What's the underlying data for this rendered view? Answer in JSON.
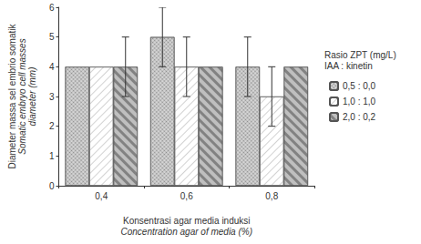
{
  "chart_data": {
    "type": "bar",
    "y_label": "Diameter massa sel embrio somatik",
    "y_label_en": "Somatic embryo cell masses\ndiameter (mm)",
    "x_label": "Konsentrasi agar media induksi",
    "x_label_en": "Concentration agar of media (%)",
    "legend_title": "Rasio ZPT (mg/L)\nIAA : kinetin",
    "categories": [
      "0,4",
      "0,6",
      "0,8"
    ],
    "series": [
      {
        "name": "0,5 : 0,0",
        "color": "#d9d9d9",
        "values": [
          4,
          5,
          4
        ],
        "errors": [
          null,
          1,
          1
        ]
      },
      {
        "name": "1,0 : 1,0",
        "color": "#ffffff",
        "values": [
          4,
          4,
          3
        ],
        "errors": [
          null,
          1,
          1
        ]
      },
      {
        "name": "2,0 : 0,2",
        "color": "#bfbfbf",
        "values": [
          4,
          4,
          4
        ],
        "errors": [
          1,
          null,
          null
        ]
      }
    ],
    "ylim": [
      0,
      6
    ],
    "yticks": [
      0,
      1,
      2,
      3,
      4,
      5,
      6
    ],
    "grid": false,
    "legend": "right"
  }
}
